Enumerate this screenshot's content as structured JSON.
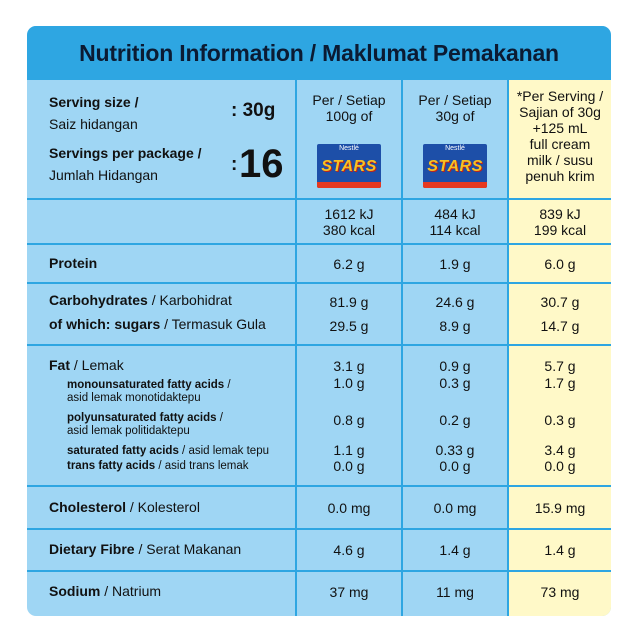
{
  "title": "Nutrition Information / Maklumat Pemakanan",
  "serving_size": {
    "label_bold": "Serving size /",
    "label_normal": "Saiz hidangan",
    "value": ": 30g"
  },
  "servings_per_package": {
    "label_bold": "Servings per package /",
    "label_normal": "Jumlah Hidangan",
    "colon": ":",
    "value": "16"
  },
  "columns": {
    "per100": [
      "Per / Setiap",
      "100g of"
    ],
    "per30": [
      "Per / Setiap",
      "30g of"
    ],
    "serving": [
      "*Per Serving /",
      "Sajian of 30g",
      "+125 mL",
      "full cream",
      "milk / susu",
      "penuh krim"
    ]
  },
  "logo": {
    "brand": "Nestlé",
    "name": "STARS"
  },
  "energy": {
    "per100": [
      "1612 kJ",
      "380 kcal"
    ],
    "per30": [
      "484 kJ",
      "114 kcal"
    ],
    "serving": [
      "839 kJ",
      "199 kcal"
    ]
  },
  "protein": {
    "label": "Protein",
    "per100": "6.2 g",
    "per30": "1.9 g",
    "serving": "6.0 g"
  },
  "carbohydrates": {
    "label_bold": "Carbohydrates",
    "label_normal": " / Karbohidrat",
    "per100": "81.9 g",
    "per30": "24.6 g",
    "serving": "30.7 g"
  },
  "sugars": {
    "label_bold": "of which: sugars",
    "label_normal": " / Termasuk Gula",
    "per100": "29.5 g",
    "per30": "8.9 g",
    "serving": "14.7 g"
  },
  "fat": {
    "label_bold": "Fat",
    "label_normal": " / Lemak",
    "per100": "3.1 g",
    "per30": "0.9 g",
    "serving": "5.7 g"
  },
  "mono": {
    "label_bold": "monounsaturated fatty acids",
    "label_normal": " /",
    "label_line2": "asid lemak monotidaktepu",
    "per100": "1.0 g",
    "per30": "0.3 g",
    "serving": "1.7 g"
  },
  "poly": {
    "label_bold": "polyunsaturated fatty acids",
    "label_normal": " /",
    "label_line2": "asid lemak politidaktepu",
    "per100": "0.8 g",
    "per30": "0.2 g",
    "serving": "0.3 g"
  },
  "saturated": {
    "label_bold": "saturated fatty acids",
    "label_normal": " / asid lemak tepu",
    "per100": "1.1 g",
    "per30": "0.33 g",
    "serving": "3.4 g"
  },
  "trans": {
    "label_bold": "trans fatty acids",
    "label_normal": " / asid trans lemak",
    "per100": "0.0 g",
    "per30": "0.0 g",
    "serving": "0.0 g"
  },
  "cholesterol": {
    "label_bold": "Cholesterol",
    "label_normal": " / Kolesterol",
    "per100": "0.0 mg",
    "per30": "0.0 mg",
    "serving": "15.9 mg"
  },
  "fibre": {
    "label_bold": "Dietary Fibre",
    "label_normal": " / Serat Makanan",
    "per100": "4.6 g",
    "per30": "1.4 g",
    "serving": "1.4 g"
  },
  "sodium": {
    "label_bold": "Sodium",
    "label_normal": " / Natrium",
    "per100": "37 mg",
    "per30": "11 mg",
    "serving": "73 mg"
  },
  "colors": {
    "panel": "#9fd6f4",
    "header": "#2ea6e2",
    "highlight": "#fff9c8",
    "title_text": "#0b1b33"
  }
}
